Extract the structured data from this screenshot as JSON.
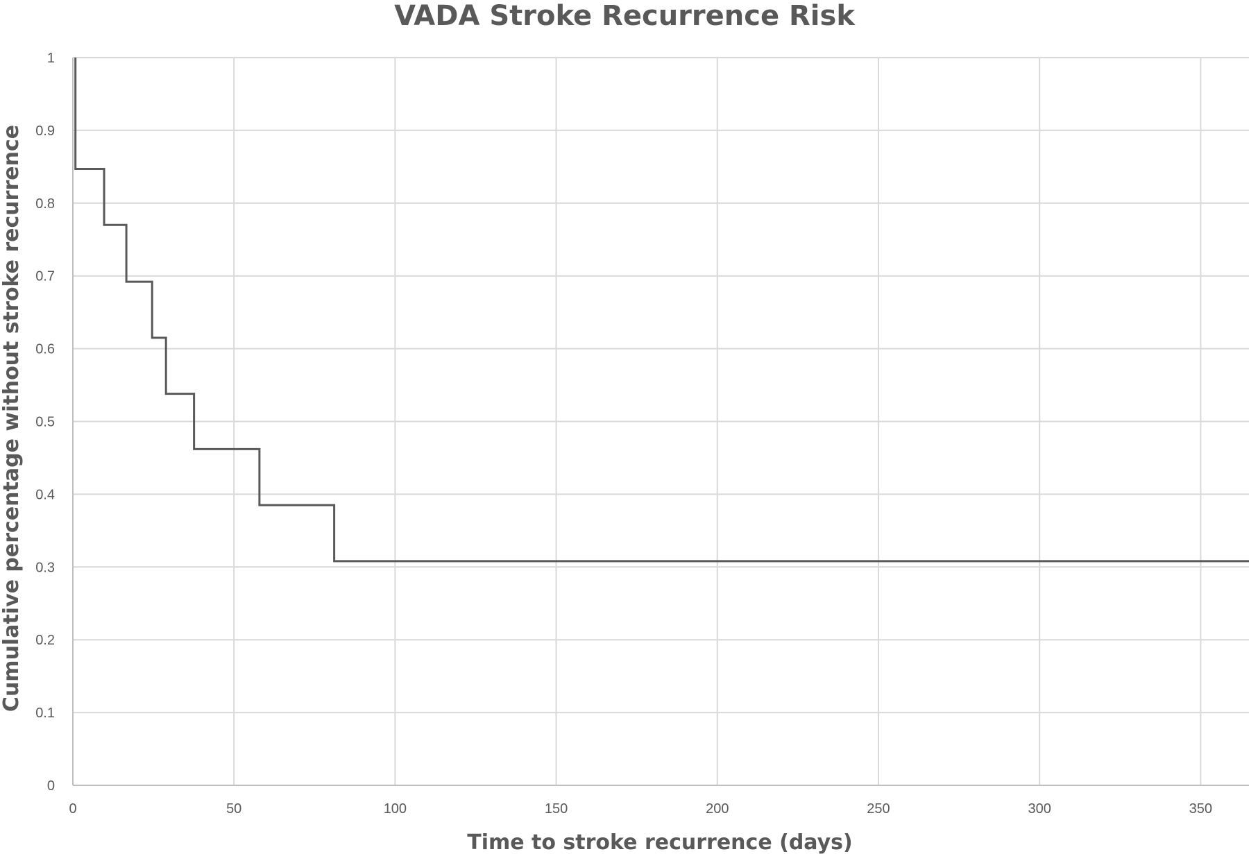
{
  "chart_data": {
    "type": "line",
    "step": true,
    "title": "VADA Stroke Recurrence Risk",
    "xlabel": "Time to stroke recurrence (days)",
    "ylabel": "Cumulative percentage without stroke recurrence",
    "xlim": [
      0,
      365
    ],
    "ylim": [
      0,
      1
    ],
    "xticks": [
      0,
      50,
      100,
      150,
      200,
      250,
      300,
      350
    ],
    "xtick_labels": [
      "0",
      "50",
      "100",
      "150",
      "200",
      "250",
      "300",
      "350"
    ],
    "yticks": [
      0,
      0.1,
      0.2,
      0.3,
      0.4,
      0.5,
      0.6,
      0.7,
      0.8,
      0.9,
      1
    ],
    "ytick_labels": [
      "0",
      "0.1",
      "0.2",
      "0.3",
      "0.4",
      "0.5",
      "0.6",
      "0.7",
      "0.8",
      "0.9",
      "1"
    ],
    "grid": true,
    "legend": "none",
    "colors": {
      "series": "#595959",
      "grid": "#d9d9d9",
      "text": "#595959"
    },
    "series": [
      {
        "x": [
          0.8,
          9.7,
          16.6,
          24.6,
          28.9,
          37.6,
          57.9,
          81.1,
          365
        ],
        "y": [
          0.847,
          0.77,
          0.692,
          0.615,
          0.538,
          0.462,
          0.385,
          0.308,
          0.308
        ]
      }
    ]
  }
}
